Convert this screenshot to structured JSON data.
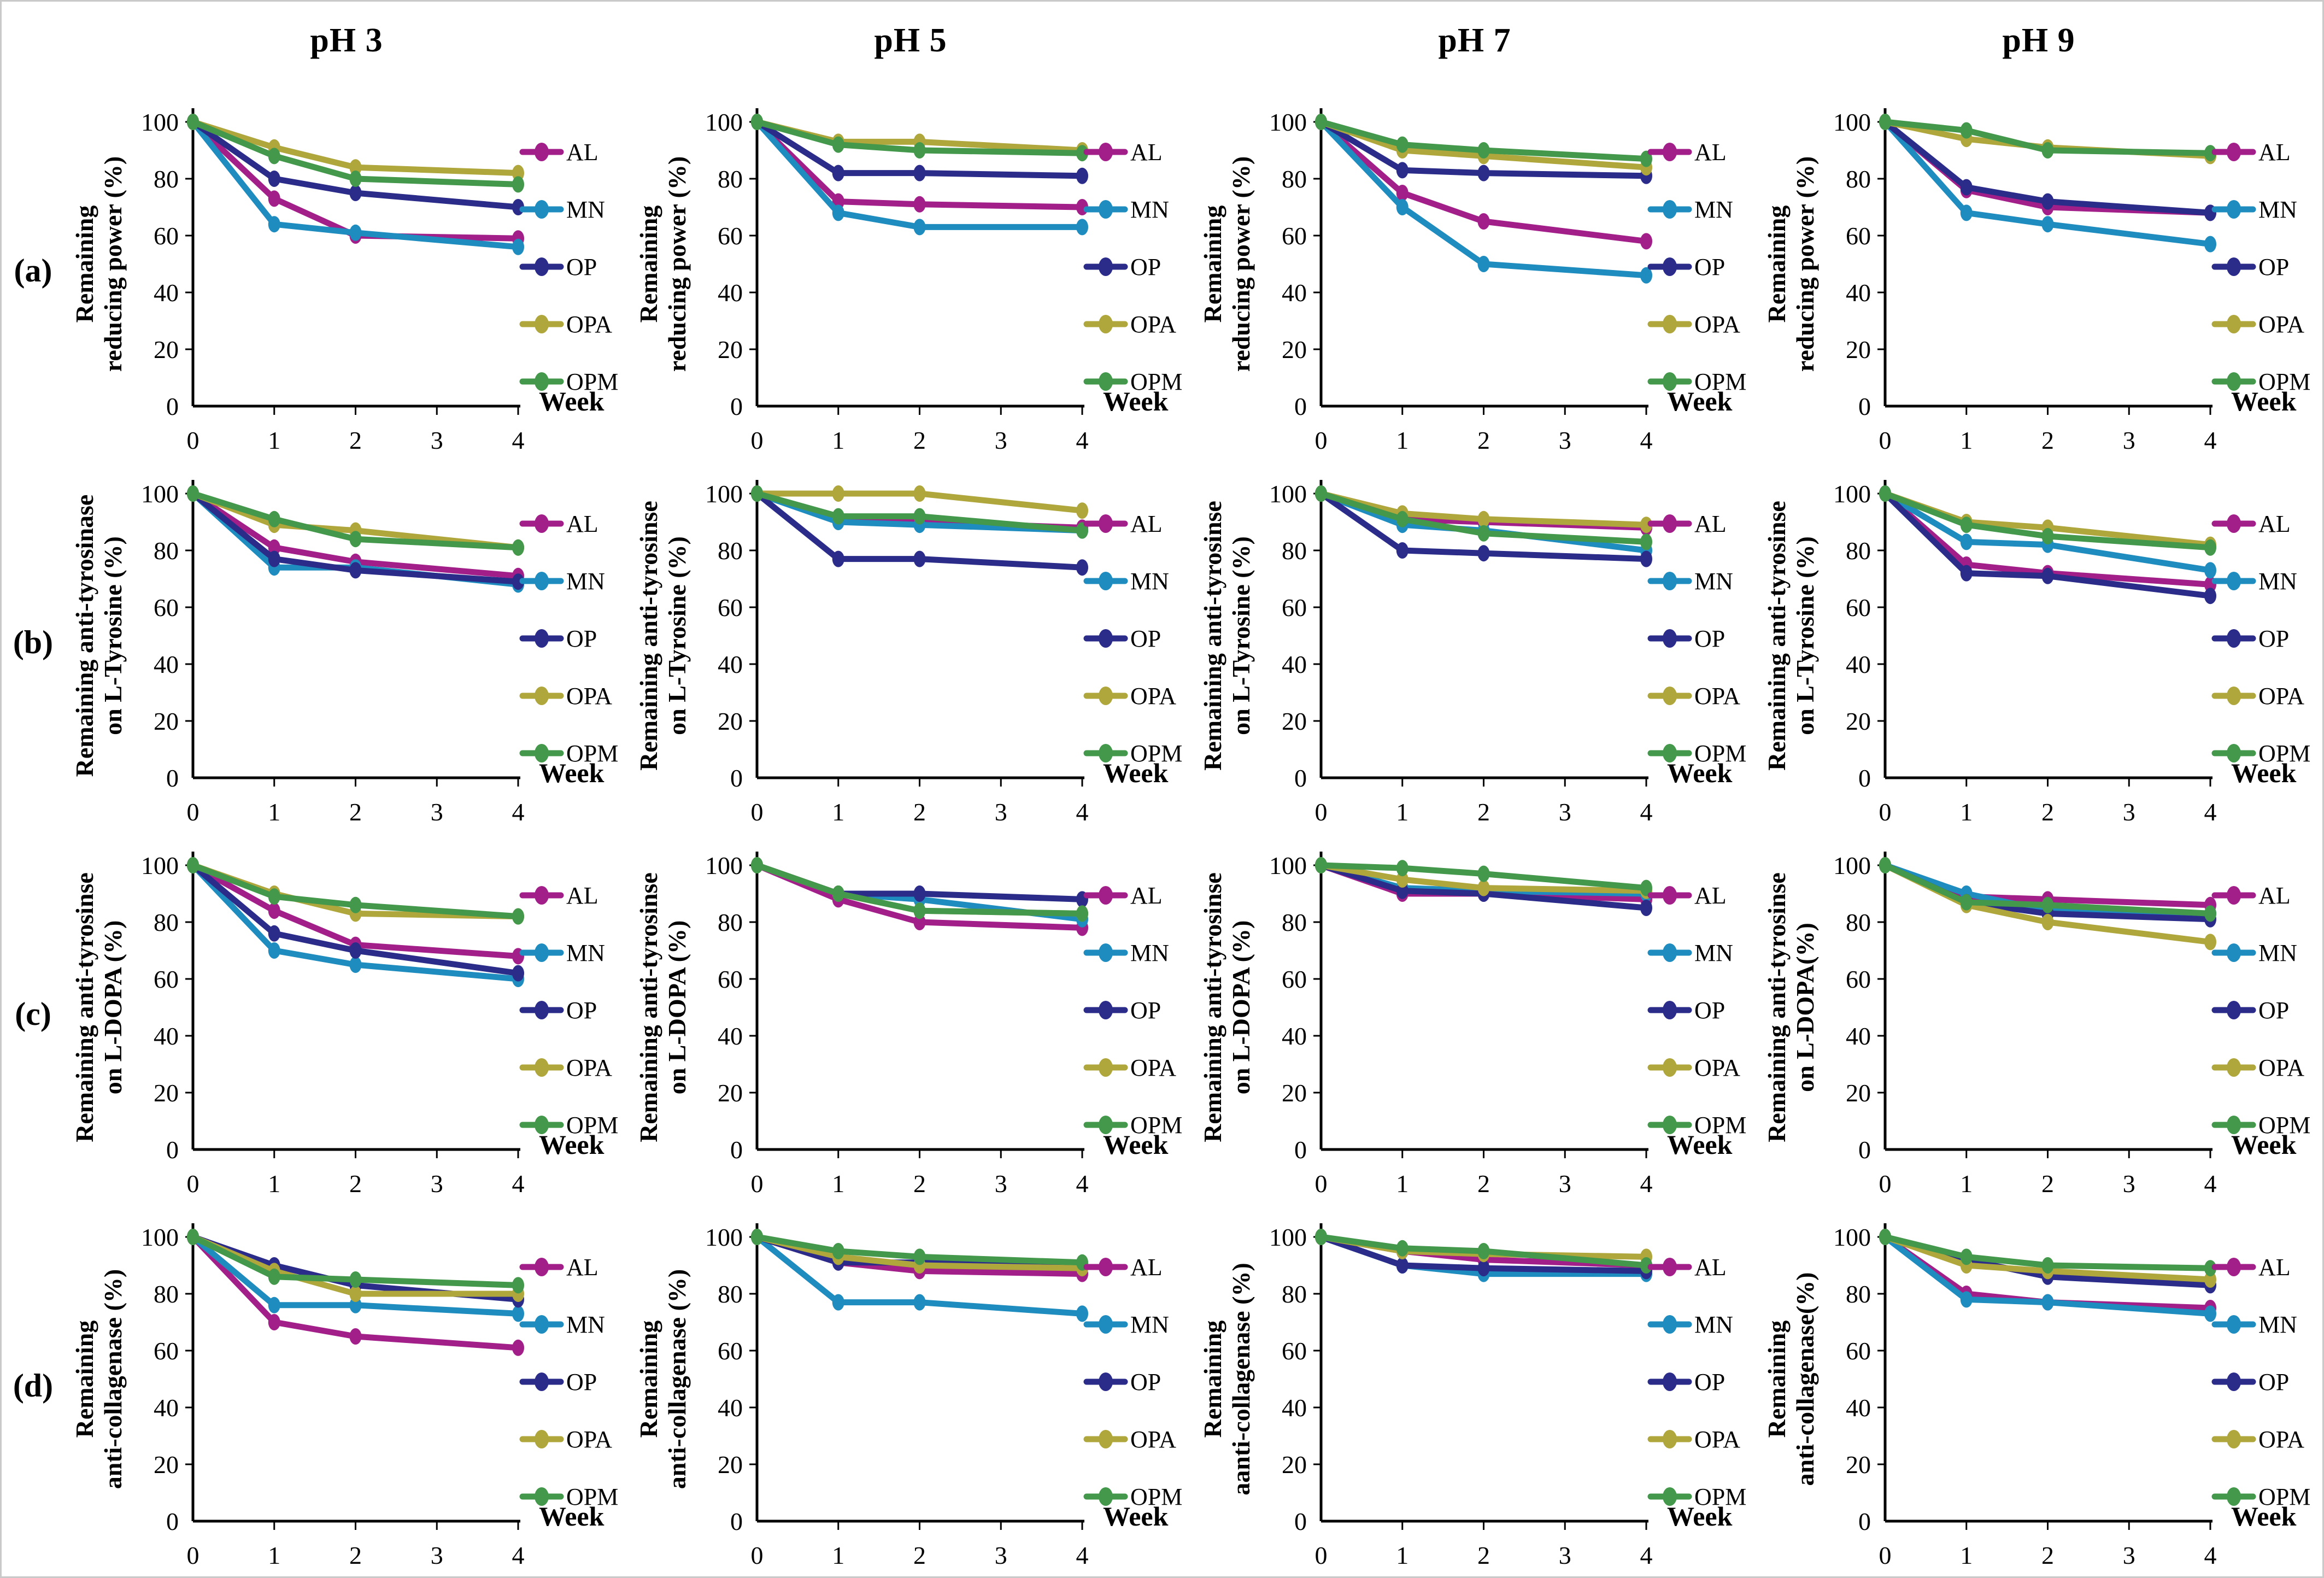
{
  "figure": {
    "column_titles": [
      "pH 3",
      "pH 5",
      "pH 7",
      "pH 9"
    ],
    "row_labels": [
      "(a)",
      "(b)",
      "(c)",
      "(d)"
    ],
    "x_axis": {
      "label": "Week",
      "ticks": [
        "0",
        "1",
        "2",
        "3",
        "4"
      ],
      "range": [
        0,
        4
      ]
    },
    "y_axis": {
      "ticks": [
        "0",
        "20",
        "40",
        "60",
        "80",
        "100"
      ],
      "range": [
        0,
        100
      ]
    },
    "series_names": [
      "AL",
      "MN",
      "OP",
      "OPA",
      "OPM"
    ],
    "series_colors": {
      "AL": "#A21E88",
      "MN": "#1E8CBE",
      "OP": "#2B2B8A",
      "OPA": "#AFA63C",
      "OPM": "#43984B"
    }
  },
  "chart_data": [
    {
      "id": "a-ph3",
      "type": "line",
      "row": "(a)",
      "column": "pH 3",
      "ylabel_lines": [
        "Remaining",
        "reducing power (%)"
      ],
      "xlabel": "Week",
      "x": [
        0,
        1,
        2,
        4
      ],
      "xlim": [
        0,
        4
      ],
      "ylim": [
        0,
        100
      ],
      "series": [
        {
          "name": "AL",
          "values": [
            100,
            73,
            60,
            59
          ]
        },
        {
          "name": "MN",
          "values": [
            100,
            64,
            61,
            56
          ]
        },
        {
          "name": "OP",
          "values": [
            100,
            80,
            75,
            70
          ]
        },
        {
          "name": "OPA",
          "values": [
            100,
            91,
            84,
            82
          ]
        },
        {
          "name": "OPM",
          "values": [
            100,
            88,
            80,
            78
          ]
        }
      ]
    },
    {
      "id": "a-ph5",
      "type": "line",
      "row": "(a)",
      "column": "pH 5",
      "ylabel_lines": [
        "Remaining",
        "reducing power (%)"
      ],
      "xlabel": "Week",
      "x": [
        0,
        1,
        2,
        4
      ],
      "xlim": [
        0,
        4
      ],
      "ylim": [
        0,
        100
      ],
      "series": [
        {
          "name": "AL",
          "values": [
            100,
            72,
            71,
            70
          ]
        },
        {
          "name": "MN",
          "values": [
            100,
            68,
            63,
            63
          ]
        },
        {
          "name": "OP",
          "values": [
            100,
            82,
            82,
            81
          ]
        },
        {
          "name": "OPA",
          "values": [
            100,
            93,
            93,
            90
          ]
        },
        {
          "name": "OPM",
          "values": [
            100,
            92,
            90,
            89
          ]
        }
      ]
    },
    {
      "id": "a-ph7",
      "type": "line",
      "row": "(a)",
      "column": "pH 7",
      "ylabel_lines": [
        "Remaining",
        "reducing power (%)"
      ],
      "xlabel": "Week",
      "x": [
        0,
        1,
        2,
        4
      ],
      "xlim": [
        0,
        4
      ],
      "ylim": [
        0,
        100
      ],
      "series": [
        {
          "name": "AL",
          "values": [
            100,
            75,
            65,
            58
          ]
        },
        {
          "name": "MN",
          "values": [
            100,
            70,
            50,
            46
          ]
        },
        {
          "name": "OP",
          "values": [
            100,
            83,
            82,
            81
          ]
        },
        {
          "name": "OPA",
          "values": [
            100,
            90,
            88,
            84
          ]
        },
        {
          "name": "OPM",
          "values": [
            100,
            92,
            90,
            87
          ]
        }
      ]
    },
    {
      "id": "a-ph9",
      "type": "line",
      "row": "(a)",
      "column": "pH 9",
      "ylabel_lines": [
        "Remaining",
        "reducing power (%)"
      ],
      "xlabel": "Week",
      "x": [
        0,
        1,
        2,
        4
      ],
      "xlim": [
        0,
        4
      ],
      "ylim": [
        0,
        100
      ],
      "series": [
        {
          "name": "AL",
          "values": [
            100,
            76,
            70,
            68
          ]
        },
        {
          "name": "MN",
          "values": [
            100,
            68,
            64,
            57
          ]
        },
        {
          "name": "OP",
          "values": [
            100,
            77,
            72,
            68
          ]
        },
        {
          "name": "OPA",
          "values": [
            100,
            94,
            91,
            88
          ]
        },
        {
          "name": "OPM",
          "values": [
            100,
            97,
            90,
            89
          ]
        }
      ]
    },
    {
      "id": "b-ph3",
      "type": "line",
      "row": "(b)",
      "column": "pH 3",
      "ylabel_lines": [
        "Remaining anti-tyrosinase",
        "on L-Tyrosine (%)"
      ],
      "xlabel": "Week",
      "x": [
        0,
        1,
        2,
        4
      ],
      "xlim": [
        0,
        4
      ],
      "ylim": [
        0,
        100
      ],
      "series": [
        {
          "name": "AL",
          "values": [
            100,
            81,
            76,
            71
          ]
        },
        {
          "name": "MN",
          "values": [
            100,
            74,
            74,
            68
          ]
        },
        {
          "name": "OP",
          "values": [
            100,
            77,
            73,
            69
          ]
        },
        {
          "name": "OPA",
          "values": [
            100,
            89,
            87,
            81
          ]
        },
        {
          "name": "OPM",
          "values": [
            100,
            91,
            84,
            81
          ]
        }
      ]
    },
    {
      "id": "b-ph5",
      "type": "line",
      "row": "(b)",
      "column": "pH 5",
      "ylabel_lines": [
        "Remaining anti-tyrosinse",
        "on L-Tyrosine (%)"
      ],
      "xlabel": "Week",
      "x": [
        0,
        1,
        2,
        4
      ],
      "xlim": [
        0,
        4
      ],
      "ylim": [
        0,
        100
      ],
      "series": [
        {
          "name": "AL",
          "values": [
            100,
            91,
            90,
            88
          ]
        },
        {
          "name": "MN",
          "values": [
            100,
            90,
            89,
            87
          ]
        },
        {
          "name": "OP",
          "values": [
            100,
            77,
            77,
            74
          ]
        },
        {
          "name": "OPA",
          "values": [
            100,
            100,
            100,
            94
          ]
        },
        {
          "name": "OPM",
          "values": [
            100,
            92,
            92,
            87
          ]
        }
      ]
    },
    {
      "id": "b-ph7",
      "type": "line",
      "row": "(b)",
      "column": "pH 7",
      "ylabel_lines": [
        "Remaining anti-tyrosinse",
        "on L-Tyrosine (%)"
      ],
      "xlabel": "Week",
      "x": [
        0,
        1,
        2,
        4
      ],
      "xlim": [
        0,
        4
      ],
      "ylim": [
        0,
        100
      ],
      "series": [
        {
          "name": "AL",
          "values": [
            100,
            91,
            90,
            88
          ]
        },
        {
          "name": "MN",
          "values": [
            100,
            89,
            87,
            80
          ]
        },
        {
          "name": "OP",
          "values": [
            100,
            80,
            79,
            77
          ]
        },
        {
          "name": "OPA",
          "values": [
            100,
            93,
            91,
            89
          ]
        },
        {
          "name": "OPM",
          "values": [
            100,
            91,
            86,
            83
          ]
        }
      ]
    },
    {
      "id": "b-ph9",
      "type": "line",
      "row": "(b)",
      "column": "pH 9",
      "ylabel_lines": [
        "Remaining anti-tyrosinse",
        "on L-Tyrosine (%)"
      ],
      "xlabel": "Week",
      "x": [
        0,
        1,
        2,
        4
      ],
      "xlim": [
        0,
        4
      ],
      "ylim": [
        0,
        100
      ],
      "series": [
        {
          "name": "AL",
          "values": [
            100,
            75,
            72,
            68
          ]
        },
        {
          "name": "MN",
          "values": [
            100,
            83,
            82,
            73
          ]
        },
        {
          "name": "OP",
          "values": [
            100,
            72,
            71,
            64
          ]
        },
        {
          "name": "OPA",
          "values": [
            100,
            90,
            88,
            82
          ]
        },
        {
          "name": "OPM",
          "values": [
            100,
            89,
            85,
            81
          ]
        }
      ]
    },
    {
      "id": "c-ph3",
      "type": "line",
      "row": "(c)",
      "column": "pH 3",
      "ylabel_lines": [
        "Remaining anti-tyrosinse",
        "on L-DOPA (%)"
      ],
      "xlabel": "Week",
      "x": [
        0,
        1,
        2,
        4
      ],
      "xlim": [
        0,
        4
      ],
      "ylim": [
        0,
        100
      ],
      "series": [
        {
          "name": "AL",
          "values": [
            100,
            84,
            72,
            68
          ]
        },
        {
          "name": "MN",
          "values": [
            100,
            70,
            65,
            60
          ]
        },
        {
          "name": "OP",
          "values": [
            100,
            76,
            70,
            62
          ]
        },
        {
          "name": "OPA",
          "values": [
            100,
            90,
            83,
            82
          ]
        },
        {
          "name": "OPM",
          "values": [
            100,
            89,
            86,
            82
          ]
        }
      ]
    },
    {
      "id": "c-ph5",
      "type": "line",
      "row": "(c)",
      "column": "pH 5",
      "ylabel_lines": [
        "Remaining anti-tyrosinse",
        "on L-DOPA (%)"
      ],
      "xlabel": "Week",
      "x": [
        0,
        1,
        2,
        4
      ],
      "xlim": [
        0,
        4
      ],
      "ylim": [
        0,
        100
      ],
      "series": [
        {
          "name": "AL",
          "values": [
            100,
            88,
            80,
            78
          ]
        },
        {
          "name": "MN",
          "values": [
            100,
            90,
            88,
            81
          ]
        },
        {
          "name": "OP",
          "values": [
            100,
            90,
            90,
            88
          ]
        },
        {
          "name": "OPA",
          "values": [
            100,
            90,
            84,
            83
          ]
        },
        {
          "name": "OPM",
          "values": [
            100,
            90,
            84,
            83
          ]
        }
      ]
    },
    {
      "id": "c-ph7",
      "type": "line",
      "row": "(c)",
      "column": "pH 7",
      "ylabel_lines": [
        "Remaining anti-tyrosinse",
        "on L-DOPA (%)"
      ],
      "xlabel": "Week",
      "x": [
        0,
        1,
        2,
        4
      ],
      "xlim": [
        0,
        4
      ],
      "ylim": [
        0,
        100
      ],
      "series": [
        {
          "name": "AL",
          "values": [
            100,
            90,
            90,
            88
          ]
        },
        {
          "name": "MN",
          "values": [
            100,
            92,
            91,
            90
          ]
        },
        {
          "name": "OP",
          "values": [
            100,
            91,
            90,
            85
          ]
        },
        {
          "name": "OPA",
          "values": [
            100,
            95,
            92,
            91
          ]
        },
        {
          "name": "OPM",
          "values": [
            100,
            99,
            97,
            92
          ]
        }
      ]
    },
    {
      "id": "c-ph9",
      "type": "line",
      "row": "(c)",
      "column": "pH 9",
      "ylabel_lines": [
        "Remaining anti-tyrosinse",
        "on L-DOPA(%)"
      ],
      "xlabel": "Week",
      "x": [
        0,
        1,
        2,
        4
      ],
      "xlim": [
        0,
        4
      ],
      "ylim": [
        0,
        100
      ],
      "series": [
        {
          "name": "AL",
          "values": [
            100,
            89,
            88,
            86
          ]
        },
        {
          "name": "MN",
          "values": [
            100,
            90,
            84,
            83
          ]
        },
        {
          "name": "OP",
          "values": [
            100,
            87,
            83,
            81
          ]
        },
        {
          "name": "OPA",
          "values": [
            100,
            86,
            80,
            73
          ]
        },
        {
          "name": "OPM",
          "values": [
            100,
            87,
            86,
            83
          ]
        }
      ]
    },
    {
      "id": "d-ph3",
      "type": "line",
      "row": "(d)",
      "column": "pH 3",
      "ylabel_lines": [
        "Remaining",
        "anti-collagenase (%)"
      ],
      "xlabel": "Week",
      "x": [
        0,
        1,
        2,
        4
      ],
      "xlim": [
        0,
        4
      ],
      "ylim": [
        0,
        100
      ],
      "series": [
        {
          "name": "AL",
          "values": [
            100,
            70,
            65,
            61
          ]
        },
        {
          "name": "MN",
          "values": [
            100,
            76,
            76,
            73
          ]
        },
        {
          "name": "OP",
          "values": [
            100,
            90,
            83,
            78
          ]
        },
        {
          "name": "OPA",
          "values": [
            100,
            88,
            80,
            80
          ]
        },
        {
          "name": "OPM",
          "values": [
            100,
            86,
            85,
            83
          ]
        }
      ]
    },
    {
      "id": "d-ph5",
      "type": "line",
      "row": "(d)",
      "column": "pH 5",
      "ylabel_lines": [
        "Remaining",
        "anti-collagenase (%)"
      ],
      "xlabel": "Week",
      "x": [
        0,
        1,
        2,
        4
      ],
      "xlim": [
        0,
        4
      ],
      "ylim": [
        0,
        100
      ],
      "series": [
        {
          "name": "AL",
          "values": [
            100,
            91,
            88,
            87
          ]
        },
        {
          "name": "MN",
          "values": [
            100,
            77,
            77,
            73
          ]
        },
        {
          "name": "OP",
          "values": [
            100,
            91,
            91,
            90
          ]
        },
        {
          "name": "OPA",
          "values": [
            100,
            93,
            90,
            89
          ]
        },
        {
          "name": "OPM",
          "values": [
            100,
            95,
            93,
            91
          ]
        }
      ]
    },
    {
      "id": "d-ph7",
      "type": "line",
      "row": "(d)",
      "column": "pH 7",
      "ylabel_lines": [
        "Remaining",
        "aanti-collagenase (%)"
      ],
      "xlabel": "Week",
      "x": [
        0,
        1,
        2,
        4
      ],
      "xlim": [
        0,
        4
      ],
      "ylim": [
        0,
        100
      ],
      "series": [
        {
          "name": "AL",
          "values": [
            100,
            95,
            92,
            90
          ]
        },
        {
          "name": "MN",
          "values": [
            100,
            90,
            87,
            87
          ]
        },
        {
          "name": "OP",
          "values": [
            100,
            90,
            89,
            88
          ]
        },
        {
          "name": "OPA",
          "values": [
            100,
            95,
            94,
            93
          ]
        },
        {
          "name": "OPM",
          "values": [
            100,
            96,
            95,
            90
          ]
        }
      ]
    },
    {
      "id": "d-ph9",
      "type": "line",
      "row": "(d)",
      "column": "pH 9",
      "ylabel_lines": [
        "Remaining",
        "anti-collagenase(%)"
      ],
      "xlabel": "Week",
      "x": [
        0,
        1,
        2,
        4
      ],
      "xlim": [
        0,
        4
      ],
      "ylim": [
        0,
        100
      ],
      "series": [
        {
          "name": "AL",
          "values": [
            100,
            80,
            77,
            75
          ]
        },
        {
          "name": "MN",
          "values": [
            100,
            78,
            77,
            73
          ]
        },
        {
          "name": "OP",
          "values": [
            100,
            92,
            86,
            83
          ]
        },
        {
          "name": "OPA",
          "values": [
            100,
            90,
            88,
            85
          ]
        },
        {
          "name": "OPM",
          "values": [
            100,
            93,
            90,
            89
          ]
        }
      ]
    }
  ]
}
